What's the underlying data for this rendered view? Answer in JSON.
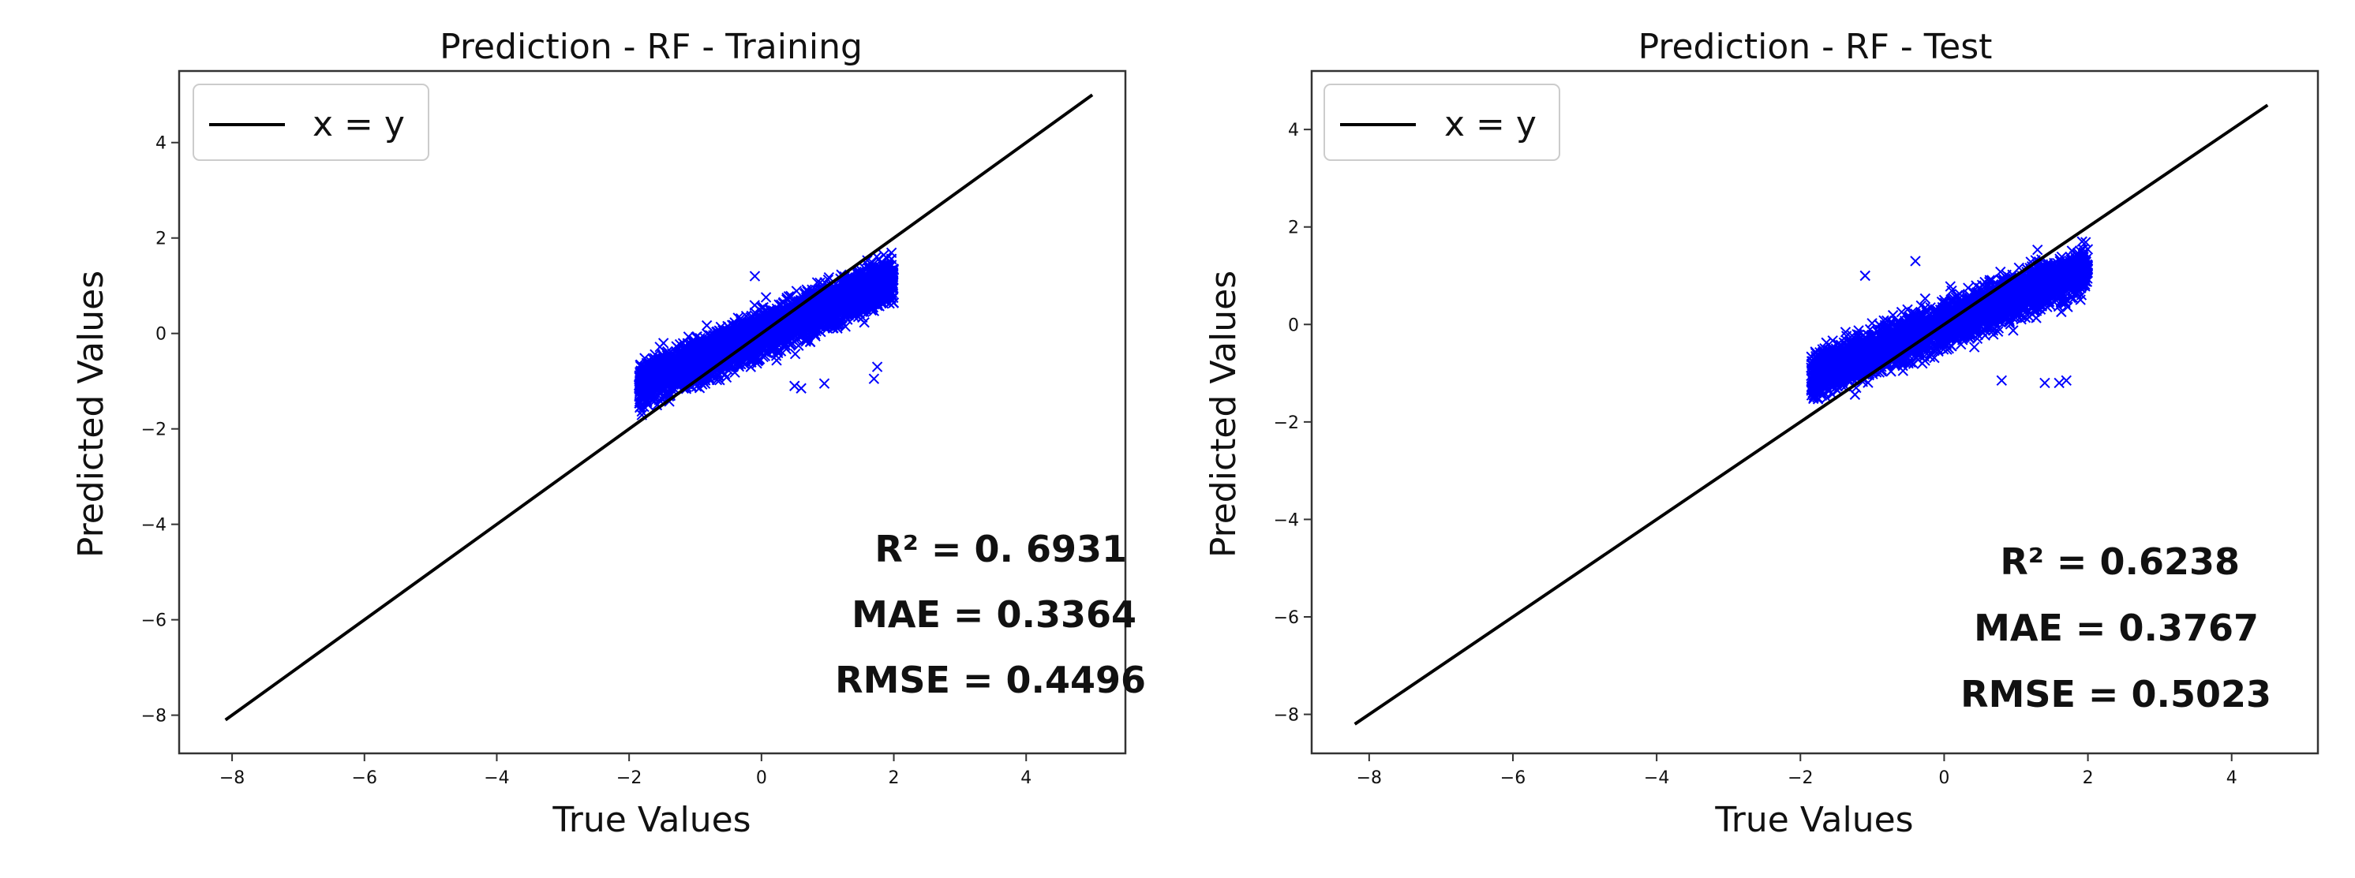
{
  "chart_data": [
    {
      "type": "scatter",
      "title": "Prediction - RF - Training",
      "xlabel": "True Values",
      "ylabel": "Predicted Values",
      "xlim": [
        -8.8,
        5.5
      ],
      "ylim": [
        -8.8,
        5.5
      ],
      "xticks": [
        -8,
        -6,
        -4,
        -2,
        0,
        2,
        4
      ],
      "yticks": [
        -8,
        -6,
        -4,
        -2,
        0,
        2,
        4
      ],
      "tick_labels": [
        "−8",
        "−6",
        "−4",
        "−2",
        "0",
        "2",
        "4"
      ],
      "marker": "x",
      "marker_color": "#0000ff",
      "line_color": "#000000",
      "series": [
        {
          "name": "x = y",
          "kind": "line",
          "x": [
            -8.1,
            5.0
          ],
          "y": [
            -8.1,
            5.0
          ]
        }
      ],
      "points_region": {
        "x_range": [
          -1.85,
          2.0
        ],
        "y_range": [
          -1.75,
          1.9
        ]
      },
      "outliers": [
        {
          "x": 0.5,
          "y": -1.1
        },
        {
          "x": 0.6,
          "y": -1.15
        },
        {
          "x": 0.95,
          "y": -1.05
        },
        {
          "x": 1.7,
          "y": -0.95
        },
        {
          "x": 1.75,
          "y": -0.7
        },
        {
          "x": -0.1,
          "y": 1.2
        }
      ],
      "legend_placement": "top-left",
      "stats": {
        "r2": "R² = 0. 6931",
        "mae": "MAE = 0.3364",
        "rmse": "RMSE = 0.4496"
      }
    },
    {
      "type": "scatter",
      "title": "Prediction - RF - Test",
      "xlabel": "True Values",
      "ylabel": "Predicted Values",
      "xlim": [
        -8.8,
        5.2
      ],
      "ylim": [
        -8.8,
        5.2
      ],
      "xticks": [
        -8,
        -6,
        -4,
        -2,
        0,
        2,
        4
      ],
      "yticks": [
        -8,
        -6,
        -4,
        -2,
        0,
        2,
        4
      ],
      "tick_labels": [
        "−8",
        "−6",
        "−4",
        "−2",
        "0",
        "2",
        "4"
      ],
      "marker": "x",
      "marker_color": "#0000ff",
      "line_color": "#000000",
      "series": [
        {
          "name": "x = y",
          "kind": "line",
          "x": [
            -8.2,
            4.5
          ],
          "y": [
            -8.2,
            4.5
          ]
        }
      ],
      "points_region": {
        "x_range": [
          -1.85,
          2.0
        ],
        "y_range": [
          -1.7,
          1.7
        ]
      },
      "outliers": [
        {
          "x": 0.8,
          "y": -1.15
        },
        {
          "x": 1.4,
          "y": -1.2
        },
        {
          "x": 1.6,
          "y": -1.2
        },
        {
          "x": 1.7,
          "y": -1.15
        },
        {
          "x": -0.4,
          "y": 1.3
        },
        {
          "x": -1.1,
          "y": 1.0
        }
      ],
      "legend_placement": "top-left",
      "stats": {
        "r2": "R² = 0.6238",
        "mae": "MAE = 0.3767",
        "rmse": "RMSE = 0.5023"
      }
    }
  ]
}
